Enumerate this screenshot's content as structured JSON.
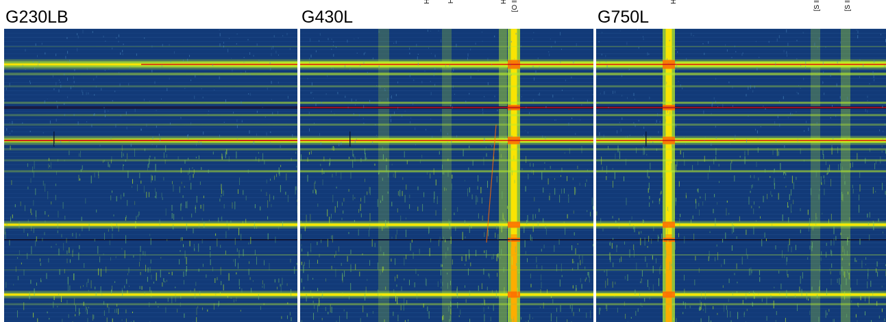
{
  "panels": [
    {
      "title": "G230LB",
      "emission_lines": [],
      "colors": {
        "background": "#123a78",
        "band": "#b8ec2a",
        "band_core": "#ffe600",
        "line_peak": "#ff6a00",
        "trace": "#c8101a"
      }
    },
    {
      "title": "G430L",
      "emission_lines": [
        {
          "label": "Hδ"
        },
        {
          "label": "Hγ"
        },
        {
          "label": "Hβ"
        },
        {
          "label": "[O III]"
        }
      ],
      "colors": {
        "background": "#123a78",
        "band": "#b8ec2a",
        "band_core": "#ffe600",
        "line_peak": "#ff6a00",
        "trace": "#c8101a"
      }
    },
    {
      "title": "G750L",
      "emission_lines": [
        {
          "label": "Hα"
        },
        {
          "label": "[S III]"
        },
        {
          "label": "[S III]"
        }
      ],
      "colors": {
        "background": "#123a78",
        "band": "#b8ec2a",
        "band_core": "#ffe600",
        "line_peak": "#ff6a00",
        "trace": "#c8101a"
      }
    }
  ],
  "colormap": "blue-green-yellow-red"
}
